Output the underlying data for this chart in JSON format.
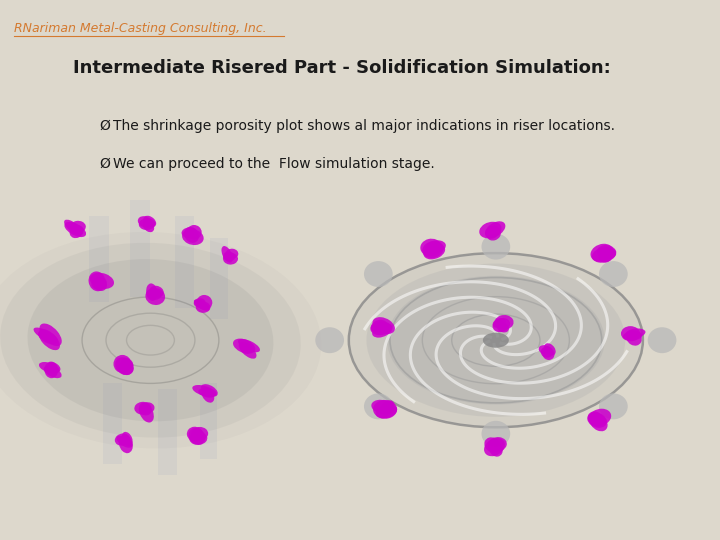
{
  "bg_color": "#ddd8cc",
  "header_text": "RNariman Metal-Casting Consulting, Inc.",
  "header_color": "#d47a30",
  "title_text": "Intermediate Risered Part - Solidification Simulation:",
  "title_color": "#1a1a1a",
  "bullet1": "The shrinkage porosity plot shows al major indications in riser locations.",
  "bullet2": "We can proceed to the  Flow simulation stage.",
  "bullet_symbol": "Ø",
  "bullet_color": "#1a1a1a",
  "magenta_color": "#cc00cc",
  "fig_width": 7.2,
  "fig_height": 5.4,
  "dpi": 100
}
